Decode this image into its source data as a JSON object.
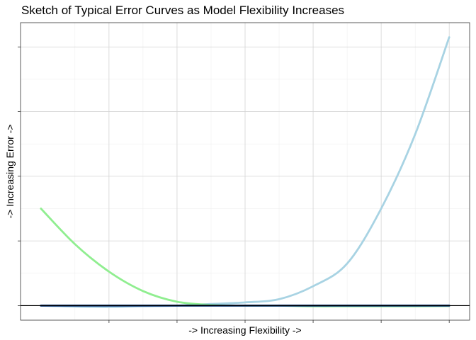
{
  "chart_data": {
    "type": "line",
    "title": "Sketch of Typical Error Curves as Model Flexibility Increases",
    "xlabel": "-> Increasing Flexibility ->",
    "ylabel": "-> Increasing Error ->",
    "x_tick_labels": [],
    "y_tick_labels": [],
    "grid": true,
    "legend": "none",
    "xlim": [
      -0.15,
      3.15
    ],
    "ylim": [
      -0.45,
      8.75
    ],
    "series": [
      {
        "color": "#a8d3e3",
        "x": [
          0,
          0.25,
          0.5,
          0.75,
          1.0,
          1.25,
          1.5,
          1.75,
          2.0,
          2.25,
          2.5,
          2.75,
          3.0
        ],
        "y": [
          0.0,
          -0.03,
          -0.04,
          -0.02,
          0.0,
          0.05,
          0.1,
          0.2,
          0.6,
          1.3,
          3.0,
          5.3,
          8.3
        ]
      },
      {
        "color": "#90ee90",
        "x": [
          0,
          0.25,
          0.5,
          0.75,
          1.0,
          1.25,
          1.5,
          1.75,
          2.0,
          2.25,
          2.5,
          2.75,
          3.0
        ],
        "y": [
          3.0,
          1.9,
          1.05,
          0.45,
          0.12,
          0.02,
          0.0,
          0.0,
          -0.02,
          -0.02,
          -0.02,
          -0.02,
          -0.01
        ]
      },
      {
        "color": "#1a3f7a",
        "x": [
          0,
          3.0
        ],
        "y": [
          0.0,
          0.0
        ]
      }
    ],
    "hline": {
      "y": 0,
      "color": "#000000"
    }
  }
}
